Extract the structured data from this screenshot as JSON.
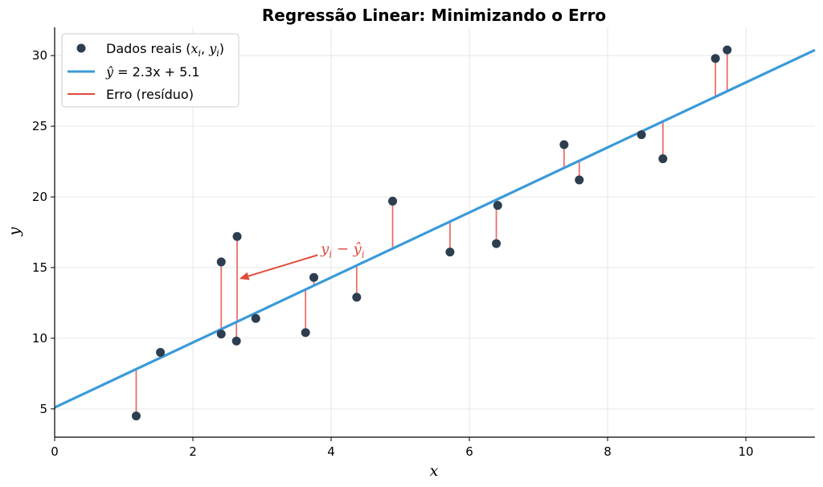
{
  "chart_data": {
    "type": "scatter",
    "title": "Regressão Linear: Minimizando o Erro",
    "xlabel": "x",
    "ylabel": "y",
    "xlim": [
      0,
      11
    ],
    "ylim": [
      3,
      32
    ],
    "xticks": [
      0,
      2,
      4,
      6,
      8,
      10
    ],
    "yticks": [
      5,
      10,
      15,
      20,
      25,
      30
    ],
    "grid": true,
    "legend_position": "top-left",
    "series": [
      {
        "name": "Dados reais (x_i, y_i)",
        "kind": "scatter",
        "color": "#2c3e50",
        "points": [
          {
            "x": 1.18,
            "y": 4.5
          },
          {
            "x": 1.53,
            "y": 9.0
          },
          {
            "x": 2.41,
            "y": 15.4
          },
          {
            "x": 2.41,
            "y": 10.3
          },
          {
            "x": 2.64,
            "y": 17.2
          },
          {
            "x": 2.63,
            "y": 9.8
          },
          {
            "x": 2.91,
            "y": 11.4
          },
          {
            "x": 3.63,
            "y": 10.4
          },
          {
            "x": 3.75,
            "y": 14.3
          },
          {
            "x": 4.37,
            "y": 12.9
          },
          {
            "x": 4.89,
            "y": 19.7
          },
          {
            "x": 5.72,
            "y": 16.1
          },
          {
            "x": 6.39,
            "y": 16.7
          },
          {
            "x": 6.41,
            "y": 19.4
          },
          {
            "x": 7.37,
            "y": 23.7
          },
          {
            "x": 7.59,
            "y": 21.2
          },
          {
            "x": 8.49,
            "y": 24.4
          },
          {
            "x": 8.8,
            "y": 22.7
          },
          {
            "x": 9.56,
            "y": 29.8
          },
          {
            "x": 9.73,
            "y": 30.4
          }
        ]
      },
      {
        "name": "ŷ = 2.3x + 5.1",
        "kind": "line",
        "color": "#3b9ad9",
        "slope": 2.3,
        "intercept": 5.1
      },
      {
        "name": "Erro (resíduo)",
        "kind": "residuals",
        "color": "#e8706a"
      }
    ],
    "annotation": {
      "text": "y_i − ŷ_i",
      "color": "#e04b3c",
      "text_at": [
        3.85,
        16.0
      ],
      "arrow_to": [
        2.67,
        14.2
      ]
    }
  },
  "text": {
    "legend_points_prefix": "Dados reais (",
    "legend_points_var_x": "x",
    "legend_points_sub_i1": "i",
    "legend_points_sep": ", ",
    "legend_points_var_y": "y",
    "legend_points_sub_i2": "i",
    "legend_points_suffix": ")",
    "legend_line_yhat": "ŷ",
    "legend_line_rest": " = 2.3x + 5.1",
    "legend_resid": "Erro (resíduo)",
    "annot_y": "y",
    "annot_i1": "i",
    "annot_minus": " − ",
    "annot_yhat": "ŷ",
    "annot_i2": "i"
  }
}
